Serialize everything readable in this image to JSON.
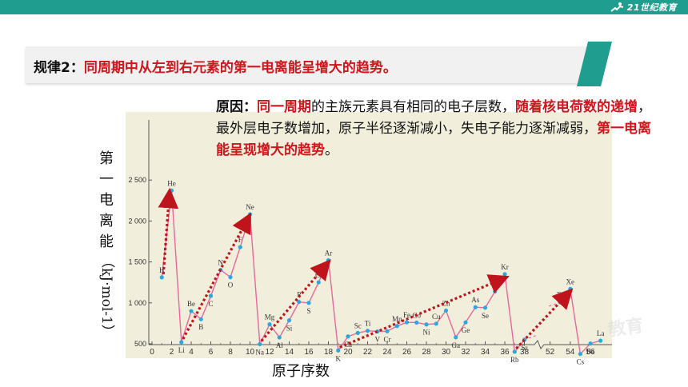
{
  "header": {
    "logo_text": "21世纪教育"
  },
  "rule": {
    "prefix": "规律2：",
    "statement": "同周期中从左到右元素的第一电离能呈增大的趋势。"
  },
  "reason": {
    "label": "原因：",
    "part1_red": "同一周期",
    "part2": "的主族元素具有相同的电子层数，",
    "part3_red": "随着核电荷数的递增",
    "part4": "，最外层电子数增加，原子半径逐渐减小，失电子能力逐渐减弱，",
    "part5_red": "第一电离能呈现增大的趋势",
    "part6": "。"
  },
  "colors": {
    "line": "#e9679a",
    "point": "#29a9e0",
    "arrow": "#c0141c",
    "panel": "#f2eedc",
    "accent": "#1f9e8f"
  },
  "chart_data": {
    "type": "line",
    "title": "",
    "xlabel": "原子序数",
    "ylabel_chars": [
      "第",
      "一",
      "电",
      "离",
      "能"
    ],
    "ylabel_unit": "（kJ·mol-1）",
    "ylim": [
      0,
      2600
    ],
    "y_ticks": [
      "2 500",
      "2 000",
      "1 500",
      "1 000",
      "500"
    ],
    "y_tick_values": [
      2500,
      2000,
      1500,
      1000,
      500
    ],
    "x_tick_labels": [
      "0",
      "2",
      "4",
      "6",
      "8",
      "10",
      "12",
      "14",
      "16",
      "18",
      "20",
      "22",
      "24",
      "26",
      "28",
      "30",
      "32",
      "34",
      "36",
      "38",
      "52",
      "54",
      "56"
    ],
    "x_tick_values": [
      0,
      2,
      4,
      6,
      8,
      10,
      12,
      14,
      16,
      18,
      20,
      22,
      24,
      26,
      28,
      30,
      32,
      34,
      36,
      38,
      52,
      54,
      56
    ],
    "axis_break": "between 38 and 52",
    "points": [
      {
        "z": 1,
        "ie": 1312,
        "label": "H"
      },
      {
        "z": 2,
        "ie": 2372,
        "label": "He"
      },
      {
        "z": 3,
        "ie": 520,
        "label": "Li"
      },
      {
        "z": 4,
        "ie": 900,
        "label": "Be"
      },
      {
        "z": 5,
        "ie": 801,
        "label": "B"
      },
      {
        "z": 6,
        "ie": 1086,
        "label": "C"
      },
      {
        "z": 7,
        "ie": 1402,
        "label": "N"
      },
      {
        "z": 8,
        "ie": 1314,
        "label": "O"
      },
      {
        "z": 9,
        "ie": 1681,
        "label": "F"
      },
      {
        "z": 10,
        "ie": 2081,
        "label": "Ne"
      },
      {
        "z": 11,
        "ie": 496,
        "label": "Na"
      },
      {
        "z": 12,
        "ie": 738,
        "label": "Mg"
      },
      {
        "z": 13,
        "ie": 578,
        "label": "Al"
      },
      {
        "z": 14,
        "ie": 787,
        "label": "Si"
      },
      {
        "z": 15,
        "ie": 1012,
        "label": "P"
      },
      {
        "z": 16,
        "ie": 1000,
        "label": "S"
      },
      {
        "z": 17,
        "ie": 1251,
        "label": "Cl"
      },
      {
        "z": 18,
        "ie": 1521,
        "label": "Ar"
      },
      {
        "z": 19,
        "ie": 419,
        "label": "K"
      },
      {
        "z": 20,
        "ie": 590,
        "label": "Ca"
      },
      {
        "z": 21,
        "ie": 633,
        "label": "Sc"
      },
      {
        "z": 22,
        "ie": 659,
        "label": "Ti"
      },
      {
        "z": 23,
        "ie": 651,
        "label": "V"
      },
      {
        "z": 24,
        "ie": 653,
        "label": "Cr"
      },
      {
        "z": 25,
        "ie": 717,
        "label": "Mn"
      },
      {
        "z": 26,
        "ie": 763,
        "label": "Fe"
      },
      {
        "z": 27,
        "ie": 760,
        "label": "Co"
      },
      {
        "z": 28,
        "ie": 737,
        "label": "Ni"
      },
      {
        "z": 29,
        "ie": 746,
        "label": "Cu"
      },
      {
        "z": 30,
        "ie": 906,
        "label": "Zn"
      },
      {
        "z": 31,
        "ie": 579,
        "label": "Ga"
      },
      {
        "z": 32,
        "ie": 762,
        "label": "Ge"
      },
      {
        "z": 33,
        "ie": 947,
        "label": "As"
      },
      {
        "z": 34,
        "ie": 941,
        "label": "Se"
      },
      {
        "z": 35,
        "ie": 1140,
        "label": "Br"
      },
      {
        "z": 36,
        "ie": 1351,
        "label": "Kr"
      },
      {
        "z": 37,
        "ie": 403,
        "label": "Rb"
      },
      {
        "z": 38,
        "ie": 550,
        "label": "Sr"
      },
      {
        "z": 53,
        "ie": 1008,
        "label": "Te"
      },
      {
        "z": 54,
        "ie": 1170,
        "label": "Xe"
      },
      {
        "z": 55,
        "ie": 376,
        "label": "Cs"
      },
      {
        "z": 56,
        "ie": 503,
        "label": "Ba"
      },
      {
        "z": 57,
        "ie": 538,
        "label": "La"
      }
    ],
    "trend_arrows": [
      {
        "from_z": 1,
        "from_ie": 1312,
        "to_z": 2,
        "to_ie": 2372
      },
      {
        "from_z": 3,
        "from_ie": 520,
        "to_z": 10,
        "to_ie": 2081
      },
      {
        "from_z": 11,
        "from_ie": 496,
        "to_z": 18,
        "to_ie": 1521
      },
      {
        "from_z": 19,
        "from_ie": 419,
        "to_z": 36,
        "to_ie": 1351
      },
      {
        "from_z": 37,
        "from_ie": 403,
        "to_z": 54,
        "to_ie": 1170
      }
    ]
  }
}
